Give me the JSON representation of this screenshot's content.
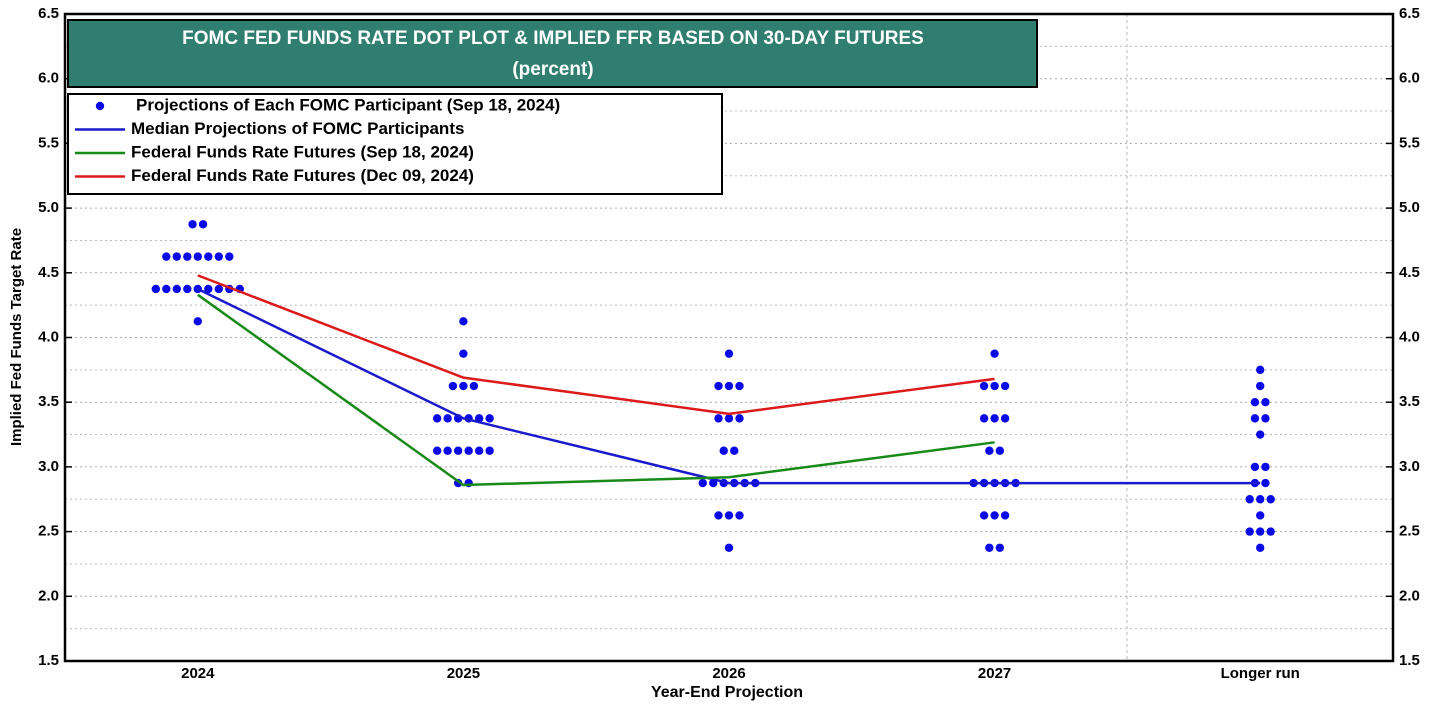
{
  "chart_data": {
    "type": "dot_plot",
    "title": "FOMC FED FUNDS RATE DOT PLOT & IMPLIED FFR BASED ON 30-DAY FUTURES",
    "subtitle": "(percent)",
    "x_label": "Year-End Projection",
    "y_label": "Implied Fed Funds Target Rate",
    "categories": [
      "2024",
      "2025",
      "2026",
      "2027",
      "Longer run"
    ],
    "ylim": [
      1.5,
      6.5
    ],
    "yticks": [
      1.5,
      {
        "value": 2.0,
        "label": "2.0"
      },
      2.5,
      {
        "value": 3.0,
        "label": "3.0"
      },
      3.5,
      {
        "value": 4.0,
        "label": "4.0"
      },
      4.5,
      {
        "value": 5.0,
        "label": "5.0"
      },
      5.5,
      {
        "value": 6.0,
        "label": "6.0"
      },
      6.5
    ],
    "y_minor_ticks": [
      1.75,
      2.25,
      2.75,
      3.25,
      3.75,
      4.25,
      4.75,
      5.25,
      5.75,
      6.25
    ],
    "grid": true,
    "series": [
      {
        "name": "Projections of Each FOMC Participant (Sep 18, 2024)",
        "type": "scatter",
        "color": "#0a0ae6",
        "values": [
          [
            4.875,
            4.875,
            4.625,
            4.625,
            4.625,
            4.625,
            4.625,
            4.625,
            4.625,
            4.375,
            4.375,
            4.375,
            4.375,
            4.375,
            4.375,
            4.375,
            4.375,
            4.375,
            4.125
          ],
          [
            4.125,
            3.875,
            3.625,
            3.625,
            3.625,
            3.375,
            3.375,
            3.375,
            3.375,
            3.375,
            3.375,
            3.125,
            3.125,
            3.125,
            3.125,
            3.125,
            3.125,
            2.875,
            2.875
          ],
          [
            3.875,
            3.625,
            3.625,
            3.625,
            3.375,
            3.375,
            3.375,
            3.125,
            3.125,
            2.875,
            2.875,
            2.875,
            2.875,
            2.875,
            2.875,
            2.625,
            2.625,
            2.625,
            2.375
          ],
          [
            3.875,
            3.625,
            3.625,
            3.625,
            3.375,
            3.375,
            3.375,
            3.125,
            3.125,
            2.875,
            2.875,
            2.875,
            2.875,
            2.875,
            2.625,
            2.625,
            2.625,
            2.375,
            2.375
          ],
          [
            3.75,
            3.625,
            3.5,
            3.5,
            3.375,
            3.375,
            3.25,
            3.0,
            3.0,
            2.875,
            2.875,
            2.75,
            2.75,
            2.75,
            2.625,
            2.5,
            2.5,
            2.5,
            2.375
          ]
        ]
      },
      {
        "name": "Median Projections of FOMC Participants",
        "type": "line",
        "color": "#1a1acc",
        "values": [
          4.375,
          3.375,
          2.875,
          2.875,
          2.875
        ]
      },
      {
        "name": "Federal Funds Rate Futures (Sep 18, 2024)",
        "type": "line",
        "color": "#178a17",
        "values": [
          4.33,
          2.86,
          2.92,
          3.19,
          null
        ]
      },
      {
        "name": "Federal Funds Rate Futures (Dec 09, 2024)",
        "type": "line",
        "color": "#dd1a1a",
        "values": [
          4.48,
          3.69,
          3.41,
          3.68,
          null
        ]
      }
    ]
  }
}
